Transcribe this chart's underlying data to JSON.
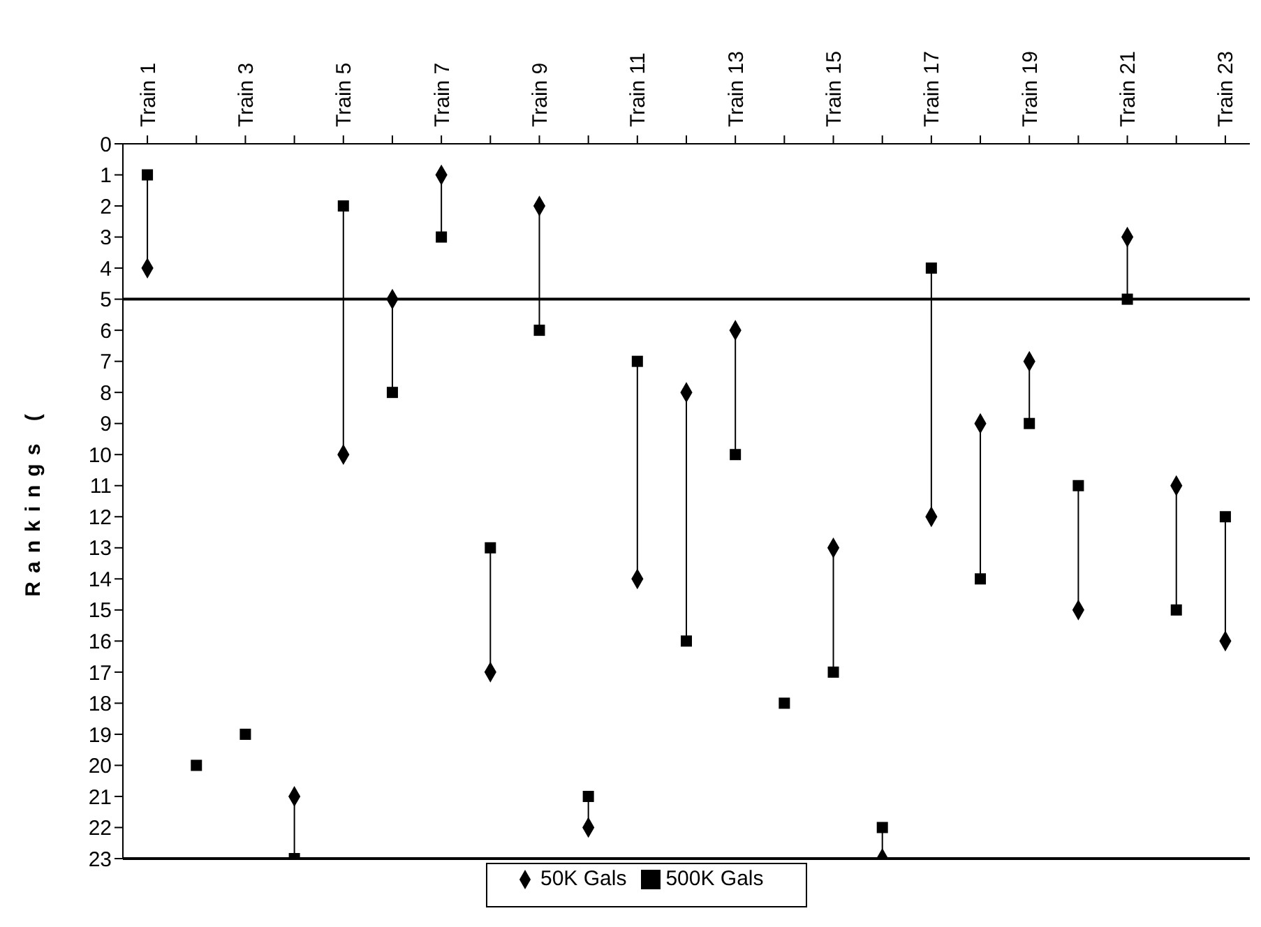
{
  "chart_data": {
    "type": "scatter",
    "ylabel": "Rankings (",
    "categories": [
      "Train 1",
      null,
      "Train 3",
      null,
      "Train 5",
      null,
      "Train 7",
      null,
      "Train 9",
      null,
      "Train 11",
      null,
      "Train 13",
      null,
      "Train 15",
      null,
      "Train 17",
      null,
      "Train 19",
      null,
      "Train 21",
      null,
      "Train 23"
    ],
    "series": [
      {
        "name": "50K Gals",
        "color": "#000000",
        "marker": "diamond",
        "values": [
          4,
          null,
          null,
          21,
          10,
          5,
          1,
          17,
          2,
          22,
          14,
          8,
          6,
          null,
          13,
          23,
          12,
          9,
          7,
          15,
          3,
          11,
          16
        ]
      },
      {
        "name": "500K Gals",
        "color": "#000000",
        "marker": "square",
        "values": [
          1,
          20,
          19,
          23,
          2,
          8,
          3,
          13,
          6,
          21,
          7,
          16,
          10,
          18,
          17,
          22,
          4,
          14,
          9,
          11,
          5,
          15,
          12
        ]
      }
    ],
    "ylim": [
      23,
      0
    ],
    "yticks": [
      0,
      1,
      2,
      3,
      4,
      5,
      6,
      7,
      8,
      9,
      10,
      11,
      12,
      13,
      14,
      15,
      16,
      17,
      18,
      19,
      20,
      21,
      22,
      23
    ],
    "ref_lines": [
      {
        "axis": "y",
        "value": 5,
        "color": "#000000"
      }
    ],
    "grid": false,
    "legend": "bottom"
  }
}
